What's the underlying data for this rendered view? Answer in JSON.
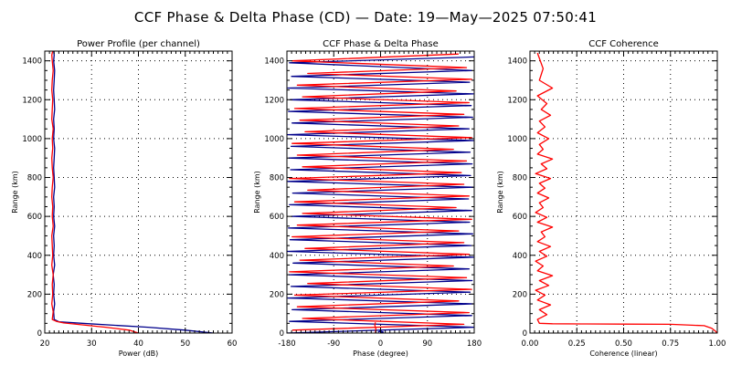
{
  "title": "CCF Phase & Delta Phase (CD) — Date: 19—May—2025 07:50:41",
  "colors": {
    "channel_a": "#00008b",
    "channel_b": "#ff0000",
    "grid": "#000000"
  },
  "chart_data": [
    {
      "id": "power",
      "type": "line",
      "title": "Power Profile (per channel)",
      "xlabel": "Power (dB)",
      "ylabel": "Range (km)",
      "xlim": [
        20,
        60
      ],
      "ylim": [
        0,
        1450
      ],
      "xticks": [
        20,
        30,
        40,
        50,
        60
      ],
      "xtick_labels": [
        "20",
        "30",
        "40",
        "50",
        "60"
      ],
      "yticks": [
        0,
        200,
        400,
        600,
        800,
        1000,
        1200,
        1400
      ],
      "grid": true,
      "series": [
        {
          "color_key": "channel_a",
          "x": [
            56,
            50,
            42,
            35,
            28,
            23,
            22.0,
            21.9,
            22.1,
            21.9,
            22.0,
            21.8,
            22.1,
            21.9,
            22.0,
            21.9,
            22.1,
            21.9,
            22.0,
            21.9,
            22.1,
            22.0,
            21.9,
            22.0,
            22.1,
            21.9,
            22.0,
            21.9,
            22.1,
            22.0,
            21.9,
            22.0,
            22.1,
            21.9,
            22.0,
            21.9
          ],
          "y": [
            0,
            15,
            30,
            40,
            50,
            58,
            70,
            110,
            150,
            200,
            250,
            300,
            350,
            400,
            450,
            500,
            550,
            600,
            650,
            700,
            750,
            800,
            850,
            900,
            950,
            1000,
            1050,
            1100,
            1150,
            1200,
            1250,
            1300,
            1350,
            1400,
            1430,
            1450
          ]
        },
        {
          "color_key": "channel_b",
          "x": [
            40,
            38,
            33,
            28,
            24,
            22.5,
            21.6,
            21.8,
            21.5,
            21.7,
            21.6,
            21.8,
            21.5,
            21.7,
            21.6,
            21.5,
            21.8,
            21.6,
            21.7,
            21.5,
            21.6,
            21.8,
            21.6,
            21.5,
            21.7,
            21.6,
            21.8,
            21.5,
            21.6,
            21.7,
            21.5,
            21.6,
            21.8,
            21.6,
            21.5,
            21.7
          ],
          "y": [
            0,
            15,
            30,
            42,
            52,
            60,
            70,
            110,
            150,
            200,
            250,
            300,
            350,
            400,
            450,
            500,
            550,
            600,
            650,
            700,
            750,
            800,
            850,
            900,
            950,
            1000,
            1050,
            1100,
            1150,
            1200,
            1250,
            1300,
            1350,
            1400,
            1430,
            1450
          ]
        }
      ]
    },
    {
      "id": "phase",
      "type": "line",
      "title": "CCF Phase & Delta Phase",
      "xlabel": "Phase (degree)",
      "ylabel": "Range (km)",
      "xlim": [
        -180,
        180
      ],
      "ylim": [
        0,
        1450
      ],
      "xticks": [
        -180,
        -90,
        0,
        90,
        180
      ],
      "xtick_labels": [
        "-180",
        "-90",
        "0",
        "90",
        "180"
      ],
      "yticks": [
        0,
        200,
        400,
        600,
        800,
        1000,
        1200,
        1400
      ],
      "grid": true,
      "series": [
        {
          "color_key": "channel_a",
          "x": [
            -180,
            180,
            -175,
            175,
            -170,
            178,
            -178,
            172,
            -172,
            176,
            -176,
            170,
            -168,
            179,
            -179,
            174,
            -174,
            177,
            -177,
            171,
            -171,
            175,
            -175,
            169,
            -169,
            178,
            -178,
            173,
            -173,
            176,
            -176,
            172,
            -172,
            179,
            -179,
            170,
            -170,
            177,
            -177,
            174,
            -174,
            178,
            -178,
            171,
            -171,
            175,
            -175,
            180
          ],
          "y": [
            0,
            30,
            60,
            90,
            120,
            150,
            180,
            210,
            240,
            270,
            300,
            330,
            360,
            390,
            420,
            450,
            480,
            510,
            540,
            570,
            600,
            630,
            660,
            690,
            720,
            750,
            780,
            810,
            840,
            870,
            900,
            930,
            960,
            990,
            1020,
            1050,
            1080,
            1110,
            1140,
            1170,
            1200,
            1230,
            1260,
            1290,
            1320,
            1350,
            1390,
            1420
          ]
        },
        {
          "color_key": "channel_b",
          "x": [
            -170,
            160,
            -150,
            170,
            -160,
            150,
            -165,
            175,
            -140,
            165,
            -175,
            140,
            -155,
            170,
            -145,
            160,
            -170,
            150,
            -160,
            175,
            -150,
            145,
            -165,
            170,
            -140,
            160,
            -175,
            155,
            -150,
            165,
            -160,
            140,
            -170,
            175,
            -145,
            150,
            -155,
            160,
            -165,
            170,
            -150,
            145,
            -160,
            175,
            -140,
            165,
            -170,
            150
          ],
          "y": [
            15,
            45,
            75,
            105,
            135,
            165,
            195,
            225,
            255,
            285,
            315,
            345,
            375,
            405,
            435,
            465,
            495,
            525,
            555,
            585,
            615,
            645,
            675,
            705,
            735,
            765,
            795,
            825,
            855,
            885,
            915,
            945,
            975,
            1005,
            1035,
            1065,
            1095,
            1125,
            1155,
            1185,
            1215,
            1245,
            1275,
            1305,
            1335,
            1365,
            1400,
            1435
          ]
        },
        {
          "color_key": "channel_b",
          "x": [
            -10,
            -9,
            -11,
            -10
          ],
          "y": [
            0,
            20,
            40,
            55
          ]
        },
        {
          "color_key": "channel_a",
          "x": [
            -5,
            0,
            5,
            0
          ],
          "y": [
            5,
            10,
            5,
            0
          ]
        }
      ]
    },
    {
      "id": "coherence",
      "type": "line",
      "title": "CCF Coherence",
      "xlabel": "Coherence (linear)",
      "ylabel": "Range (km)",
      "xlim": [
        0,
        1
      ],
      "ylim": [
        0,
        1450
      ],
      "xticks": [
        0,
        0.25,
        0.5,
        0.75,
        1
      ],
      "xtick_labels": [
        "0.00",
        "0.25",
        "0.50",
        "0.75",
        "1.00"
      ],
      "yticks": [
        0,
        200,
        400,
        600,
        800,
        1000,
        1200,
        1400
      ],
      "grid": true,
      "series": [
        {
          "color_key": "channel_b",
          "x": [
            1.0,
            0.99,
            0.97,
            0.93,
            0.75,
            0.5,
            0.3,
            0.12,
            0.05,
            0.04,
            0.09,
            0.05,
            0.11,
            0.04,
            0.08,
            0.03,
            0.1,
            0.05,
            0.12,
            0.04,
            0.07,
            0.03,
            0.09,
            0.05,
            0.11,
            0.04,
            0.08,
            0.06,
            0.12,
            0.04,
            0.09,
            0.03,
            0.07,
            0.05,
            0.1,
            0.04,
            0.08,
            0.05,
            0.11,
            0.03,
            0.09,
            0.06,
            0.12,
            0.04,
            0.07,
            0.05,
            0.1,
            0.04,
            0.08,
            0.05,
            0.11,
            0.06,
            0.09,
            0.04,
            0.12,
            0.05,
            0.07,
            0.04
          ],
          "y": [
            0,
            10,
            25,
            38,
            45,
            46,
            47,
            48,
            50,
            70,
            95,
            120,
            145,
            170,
            195,
            220,
            245,
            270,
            295,
            320,
            345,
            370,
            395,
            420,
            445,
            470,
            495,
            520,
            545,
            570,
            595,
            620,
            645,
            670,
            695,
            720,
            745,
            770,
            795,
            820,
            845,
            870,
            895,
            920,
            945,
            970,
            1000,
            1030,
            1060,
            1090,
            1120,
            1150,
            1180,
            1220,
            1260,
            1300,
            1360,
            1440
          ]
        }
      ]
    }
  ]
}
